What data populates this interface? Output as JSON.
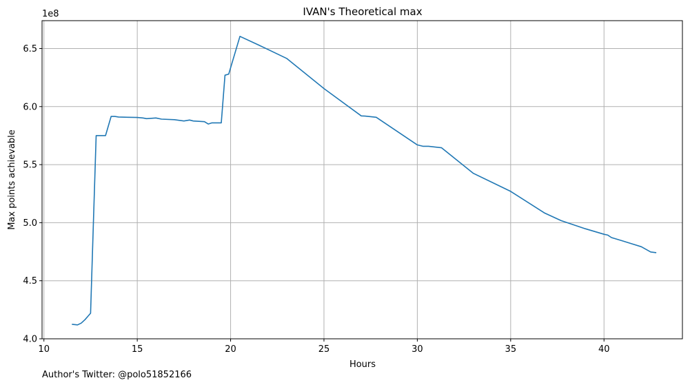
{
  "chart_data": {
    "type": "line",
    "title": "IVAN's Theoretical max",
    "xlabel": "Hours",
    "ylabel": "Max points achievable",
    "y_offset_label": "1e8",
    "xlim": [
      9.9,
      44.2
    ],
    "ylim": [
      4.0,
      6.74
    ],
    "x_ticks": [
      10,
      15,
      20,
      25,
      30,
      35,
      40
    ],
    "y_ticks": [
      4.0,
      4.5,
      5.0,
      5.5,
      6.0,
      6.5
    ],
    "x_tick_labels": [
      "10",
      "15",
      "20",
      "25",
      "30",
      "35",
      "40"
    ],
    "y_tick_labels": [
      "4.0",
      "4.5",
      "5.0",
      "5.5",
      "6.0",
      "6.5"
    ],
    "grid": true,
    "series": [
      {
        "color": "#1f77b4",
        "x": [
          11.5,
          11.8,
          12.0,
          12.2,
          12.5,
          12.65,
          12.8,
          13.3,
          13.6,
          13.8,
          14.0,
          14.5,
          15.0,
          15.3,
          15.5,
          16.0,
          16.3,
          17.0,
          17.5,
          17.8,
          18.0,
          18.6,
          18.8,
          19.0,
          19.5,
          19.7,
          19.9,
          20.5,
          21.5,
          23.0,
          25.0,
          27.0,
          27.2,
          27.8,
          30.0,
          30.3,
          30.6,
          31.3,
          33.0,
          35.0,
          36.8,
          37.7,
          39.0,
          40.0,
          40.2,
          40.4,
          41.0,
          41.5,
          42.0,
          42.5,
          42.8
        ],
        "y": [
          4.125,
          4.12,
          4.135,
          4.165,
          4.22,
          5.0,
          5.75,
          5.75,
          5.915,
          5.915,
          5.91,
          5.908,
          5.906,
          5.902,
          5.896,
          5.902,
          5.892,
          5.887,
          5.876,
          5.884,
          5.876,
          5.87,
          5.85,
          5.86,
          5.86,
          6.27,
          6.28,
          6.605,
          6.53,
          6.415,
          6.155,
          5.92,
          5.918,
          5.908,
          5.67,
          5.658,
          5.658,
          5.645,
          5.425,
          5.27,
          5.085,
          5.018,
          4.948,
          4.9,
          4.893,
          4.872,
          4.843,
          4.818,
          4.793,
          4.748,
          4.742
        ]
      }
    ]
  },
  "footnote": "Author's Twitter: @polo51852166"
}
